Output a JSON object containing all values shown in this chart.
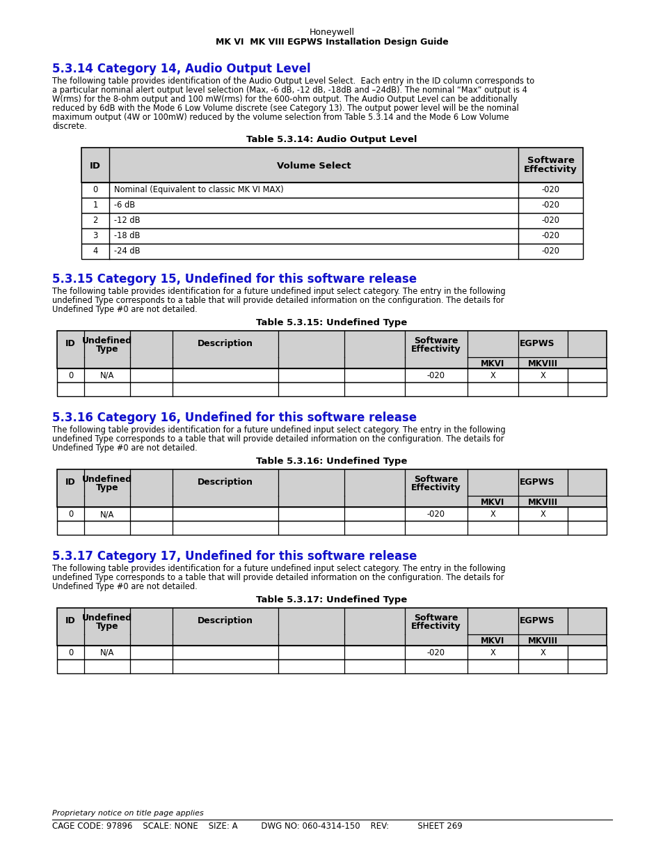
{
  "page_title_line1": "Honeywell",
  "page_title_line2": "MK VI  MK VIII EGPWS Installation Design Guide",
  "sections": [
    {
      "heading": "5.3.14 Category 14, Audio Output Level",
      "body_text": "The following table provides identification of the Audio Output Level Select.  Each entry in the ID column corresponds to\na particular nominal alert output level selection (Max, -6 dB, -12 dB, -18dB and –24dB). The nominal “Max” output is 4\nW(rms) for the 8-ohm output and 100 mW(rms) for the 600-ohm output. The Audio Output Level can be additionally\nreduced by 6dB with the Mode 6 Low Volume discrete (see Category 13). The output power level will be the nominal\nmaximum output (4W or 100mW) reduced by the volume selection from Table 5.3.14 and the Mode 6 Low Volume\ndiscrete.",
      "table_title": "Table 5.3.14: Audio Output Level",
      "table_type": "audio",
      "table_rows": [
        [
          "0",
          "Nominal (Equivalent to classic MK VI MAX)",
          "-020"
        ],
        [
          "1",
          "-6 dB",
          "-020"
        ],
        [
          "2",
          "-12 dB",
          "-020"
        ],
        [
          "3",
          "-18 dB",
          "-020"
        ],
        [
          "4",
          "-24 dB",
          "-020"
        ]
      ]
    },
    {
      "heading": "5.3.15 Category 15, Undefined for this software release",
      "body_text": "The following table provides identification for a future undefined input select category. The entry in the following\nundefined Type corresponds to a table that will provide detailed information on the configuration. The details for\nUndefined Type #0 are not detailed.",
      "table_title": "Table 5.3.15: Undefined Type",
      "table_type": "undefined",
      "table_rows": [
        [
          "0",
          "N/A",
          "-020",
          "X",
          "X"
        ],
        [
          "",
          "",
          "",
          "",
          ""
        ]
      ]
    },
    {
      "heading": "5.3.16 Category 16, Undefined for this software release",
      "body_text": "The following table provides identification for a future undefined input select category. The entry in the following\nundefined Type corresponds to a table that will provide detailed information on the configuration. The details for\nUndefined Type #0 are not detailed.",
      "table_title": "Table 5.3.16: Undefined Type",
      "table_type": "undefined",
      "table_rows": [
        [
          "0",
          "N/A",
          "-020",
          "X",
          "X"
        ],
        [
          "",
          "",
          "",
          "",
          ""
        ]
      ]
    },
    {
      "heading": "5.3.17 Category 17, Undefined for this software release",
      "body_text": "The following table provides identification for a future undefined input select category. The entry in the following\nundefined Type corresponds to a table that will provide detailed information on the configuration. The details for\nUndefined Type #0 are not detailed.",
      "table_title": "Table 5.3.17: Undefined Type",
      "table_type": "undefined",
      "table_rows": [
        [
          "0",
          "N/A",
          "-020",
          "X",
          "X"
        ],
        [
          "",
          "",
          "",
          "",
          ""
        ]
      ]
    }
  ],
  "footer_notice": "Proprietary notice on title page applies",
  "footer_line1": "CAGE CODE: 97896    SCALE: NONE    SIZE: A         DWG NO: 060-4314-150    REV:           SHEET 269",
  "heading_color": "#1111CC",
  "bg_color": "#ffffff",
  "header_bg": "#d0d0d0",
  "border_color": "#000000",
  "body_fs": 8.3,
  "heading_fs": 12.0,
  "title_fs": 9.5
}
